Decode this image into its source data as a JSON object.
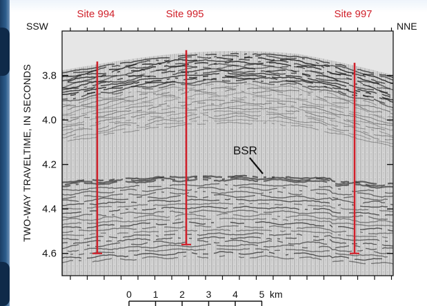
{
  "sites": [
    {
      "label": "Site 994",
      "bottom": 4.6
    },
    {
      "label": "Site 995",
      "bottom": 4.56
    },
    {
      "label": "Site 997",
      "bottom": 4.6
    }
  ],
  "direction": {
    "left": "SSW",
    "right": "NNE"
  },
  "y_axis": {
    "title": "TWO-WAY TRAVELTIME, IN SECONDS",
    "ticks": [
      "3.8",
      "4.0",
      "4.2",
      "4.4",
      "4.6"
    ],
    "tick_values": [
      3.8,
      4.0,
      4.2,
      4.4,
      4.6
    ],
    "range": [
      3.6,
      4.7
    ]
  },
  "annotation": {
    "label": "BSR"
  },
  "scale_bar": {
    "ticks": [
      "0",
      "1",
      "2",
      "3",
      "4",
      "5"
    ],
    "unit": "km"
  },
  "colors": {
    "site_red": "#d0202a",
    "seismic_bg": "#d6d6d6",
    "reflector": "#1a1a1a"
  }
}
